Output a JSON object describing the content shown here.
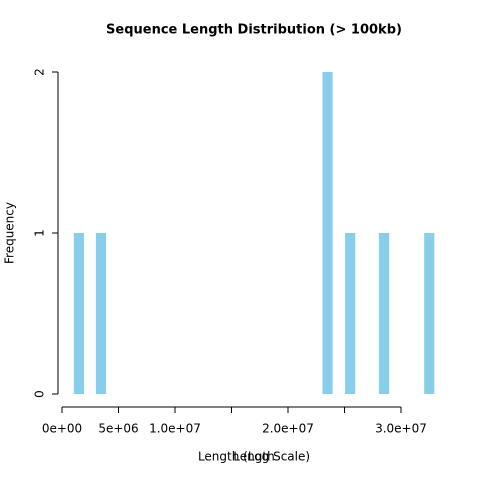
{
  "chart_data": {
    "type": "bar",
    "title": "Sequence Length Distribution (> 100kb)",
    "xlabel": "Length",
    "xlabel2": "Length (Log Scale)",
    "ylabel": "Frequency",
    "x": [
      1500000,
      3450000,
      23500000,
      25500000,
      28500000,
      32500000
    ],
    "values": [
      1,
      1,
      2,
      1,
      1,
      1
    ],
    "bar_width": 900000,
    "color": "#87ceeb",
    "xlim": [
      0,
      30000000
    ],
    "xticks": [
      {
        "value": 0,
        "label": "0e+00"
      },
      {
        "value": 5000000,
        "label": "5e+06"
      },
      {
        "value": 10000000,
        "label": "1.0e+07"
      },
      {
        "value": 15000000,
        "label": null
      },
      {
        "value": 20000000,
        "label": "2.0e+07"
      },
      {
        "value": 25000000,
        "label": null
      },
      {
        "value": 30000000,
        "label": "3.0e+07"
      }
    ],
    "ylim": [
      0,
      2
    ],
    "yticks": [
      0,
      1,
      2
    ]
  }
}
